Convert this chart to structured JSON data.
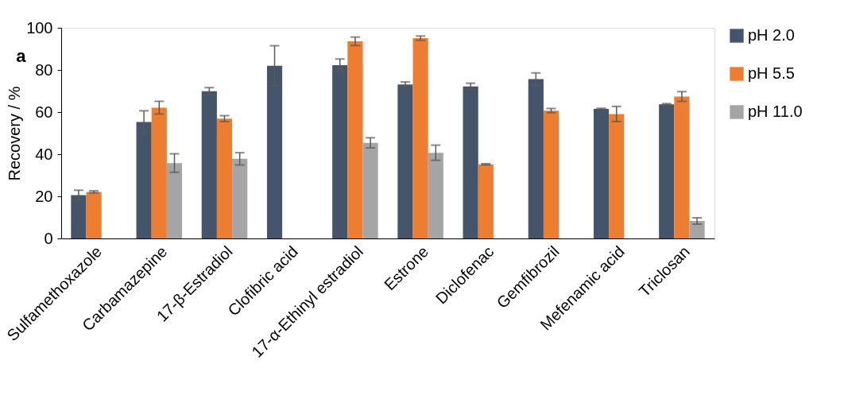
{
  "chart_data": {
    "type": "bar",
    "title": "a",
    "ylabel": "Recovery / %",
    "categories": [
      "Sulfamethoxazole",
      "Carbamazepine",
      "17-β-Estradiol",
      "Clofibric acid",
      "17-α-Ethinyl estradiol",
      "Estrone",
      "Diclofenac",
      "Gemfibrozil",
      "Mefenamic acid",
      "Triclosan"
    ],
    "series": [
      {
        "name": "pH 2.0",
        "color": "#44546a",
        "values": [
          20.6,
          55.3,
          69.9,
          82.0,
          82.3,
          73.1,
          72.2,
          75.7,
          61.5,
          63.7
        ],
        "errors": [
          2.3,
          5.3,
          1.7,
          9.5,
          2.9,
          1.2,
          1.5,
          2.9,
          0.3,
          0.3
        ]
      },
      {
        "name": "pH 5.5",
        "color": "#ed7d31",
        "values": [
          22.1,
          62.1,
          56.9,
          null,
          93.6,
          95.1,
          35.2,
          60.7,
          59.1,
          67.4
        ],
        "errors": [
          0.5,
          3.0,
          1.4,
          null,
          2.0,
          1.0,
          0.3,
          1.0,
          3.6,
          2.3
        ]
      },
      {
        "name": "pH 11.0",
        "color": "#a5a5a5",
        "values": [
          null,
          35.8,
          37.8,
          null,
          45.4,
          40.7,
          null,
          null,
          null,
          8.3
        ],
        "errors": [
          null,
          4.4,
          2.9,
          null,
          2.4,
          3.6,
          null,
          null,
          null,
          1.5
        ]
      }
    ],
    "ylim": [
      0,
      100
    ],
    "yticks": [
      0,
      20,
      40,
      60,
      80,
      100
    ],
    "grid": false,
    "legend": "right"
  }
}
